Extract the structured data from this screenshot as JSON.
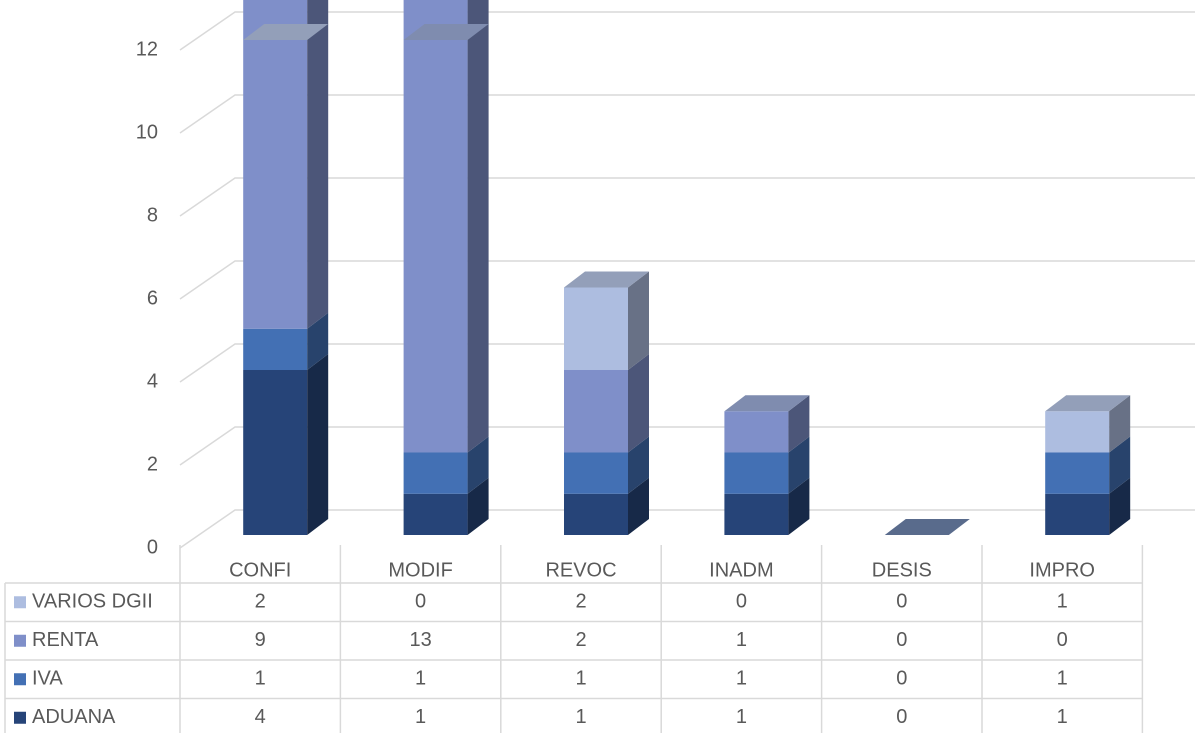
{
  "chart_data": {
    "type": "bar3d_stacked",
    "categories": [
      "CONFI",
      "MODIF",
      "REVOC",
      "INADM",
      "DESIS",
      "IMPRO"
    ],
    "series": [
      {
        "name": "ADUANA",
        "color": "#264478",
        "values": [
          4,
          1,
          1,
          1,
          0,
          1
        ]
      },
      {
        "name": "IVA",
        "color": "#4370b4",
        "values": [
          1,
          1,
          1,
          1,
          0,
          1
        ]
      },
      {
        "name": "RENTA",
        "color": "#7f8fc9",
        "values": [
          9,
          13,
          2,
          1,
          0,
          0
        ]
      },
      {
        "name": "VARIOS DGII",
        "color": "#adbde0",
        "values": [
          2,
          0,
          2,
          0,
          0,
          1
        ]
      }
    ],
    "ylim": [
      0,
      12
    ],
    "yticks": [
      0,
      2,
      4,
      6,
      8,
      10,
      12
    ],
    "grid": true,
    "data_table": true
  }
}
